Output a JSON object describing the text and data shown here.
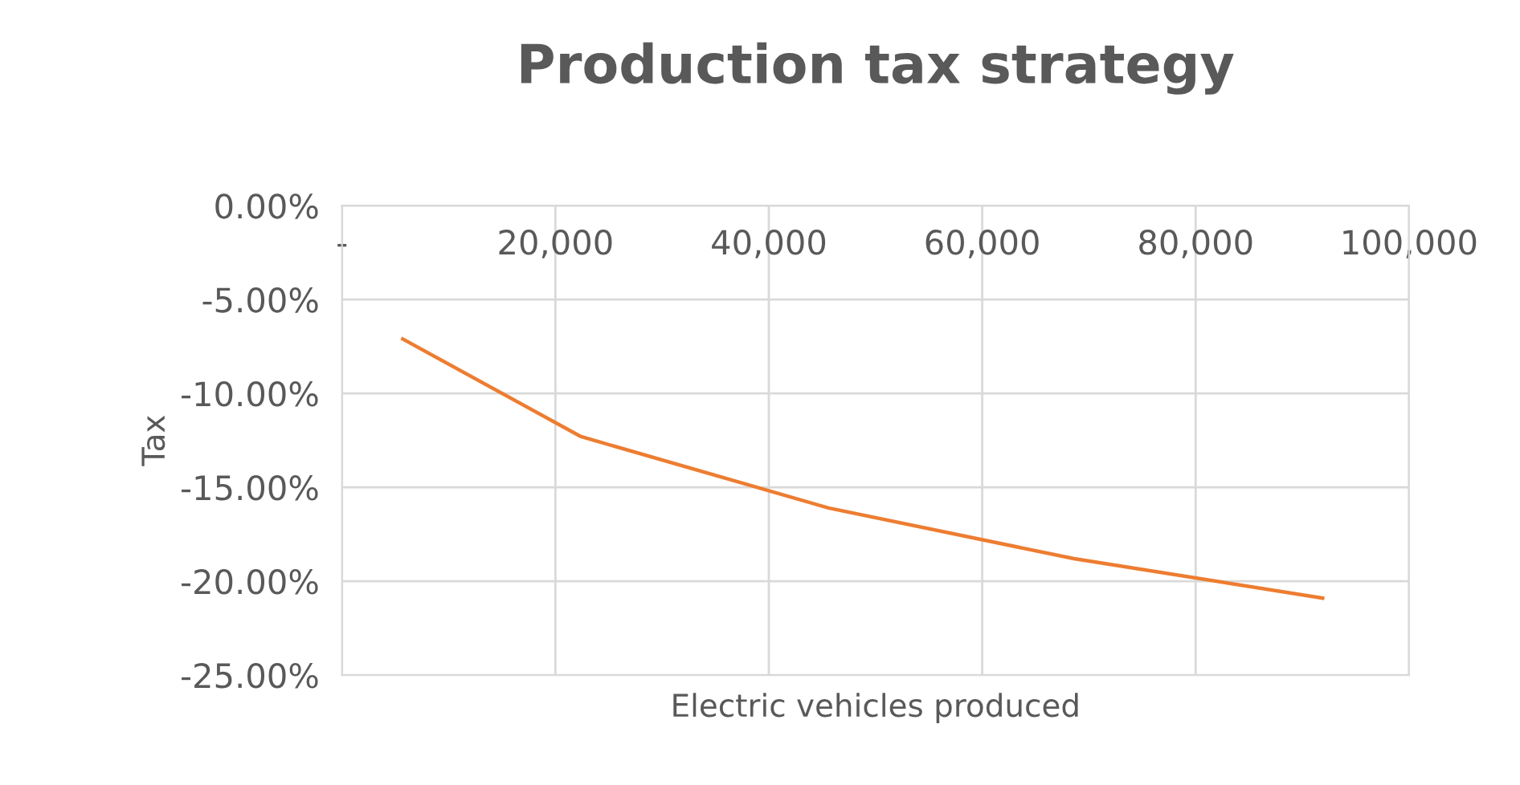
{
  "chart_data": {
    "type": "line",
    "title": "Production tax strategy",
    "xlabel": "Electric vehicles produced",
    "ylabel": "Tax",
    "x": [
      5700,
      22400,
      45600,
      68600,
      91900
    ],
    "series": [
      {
        "color": "#ed7d31",
        "values": [
          -7.1,
          -12.3,
          -16.1,
          -18.8,
          -20.9
        ]
      }
    ],
    "xlim": [
      0,
      100000
    ],
    "xticks": [
      {
        "value": 0,
        "label": "-"
      },
      {
        "value": 20000,
        "label": "20,000"
      },
      {
        "value": 40000,
        "label": "40,000"
      },
      {
        "value": 60000,
        "label": "60,000"
      },
      {
        "value": 80000,
        "label": "80,000"
      },
      {
        "value": 100000,
        "label": "100,000"
      }
    ],
    "ylim": [
      -25,
      0
    ],
    "yticks": [
      {
        "value": 0,
        "label": "0.00%"
      },
      {
        "value": -5,
        "label": "-5.00%"
      },
      {
        "value": -10,
        "label": "-10.00%"
      },
      {
        "value": -15,
        "label": "-15.00%"
      },
      {
        "value": -20,
        "label": "-20.00%"
      },
      {
        "value": -25,
        "label": "-25.00%"
      }
    ],
    "grid": true,
    "legend": false,
    "marker": "none",
    "line_style": "solid"
  }
}
